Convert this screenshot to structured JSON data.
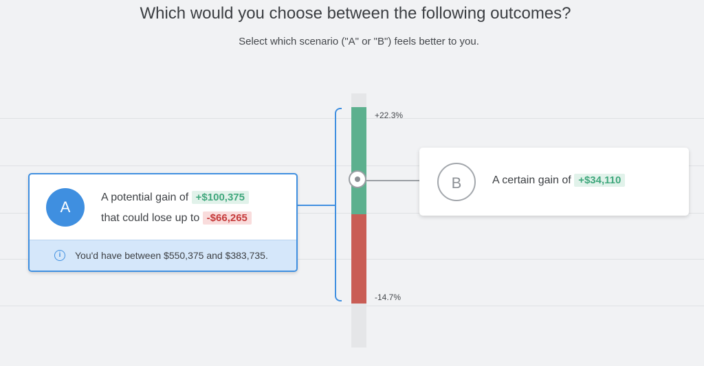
{
  "header": {
    "title": "Which would you choose between the following outcomes?",
    "subtitle": "Select which scenario (\"A\" or \"B\") feels better to you."
  },
  "range_bar": {
    "upper_label": "+22.3%",
    "lower_label": "-14.7%",
    "upper_color": "#5cb08e",
    "lower_color": "#c95d55"
  },
  "option_a": {
    "badge": "A",
    "gain_prefix": "A potential gain of",
    "gain_value": "+$100,375",
    "loss_prefix": "that could lose up to",
    "loss_value": "-$66,265",
    "info_icon": "info-circle-icon",
    "info_text": "You'd have between $550,375 and $383,735.",
    "accent_color": "#3f8fe0"
  },
  "option_b": {
    "badge": "B",
    "gain_prefix": "A certain gain of",
    "gain_value": "+$34,110"
  }
}
